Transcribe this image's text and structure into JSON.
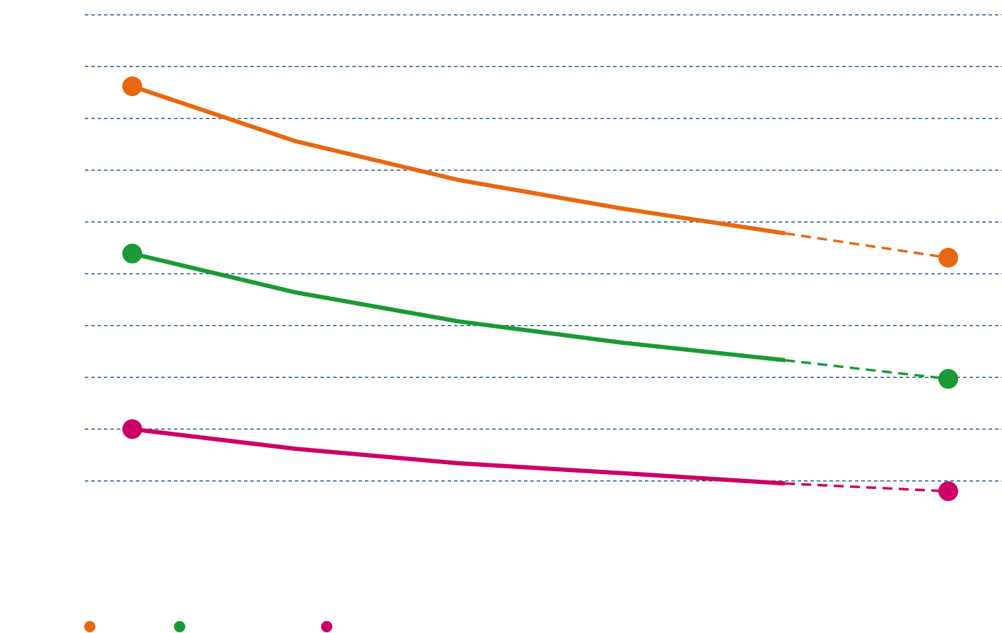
{
  "chart_data": {
    "type": "line",
    "categories": [
      null,
      null,
      null,
      null,
      null,
      null
    ],
    "ylim": [
      0,
      10
    ],
    "yticks": [
      1,
      2,
      3,
      4,
      5,
      6,
      7,
      8,
      9,
      10
    ],
    "grid": true,
    "dash_from_index": 4,
    "markers": "ends",
    "legend": "bottom-left",
    "series": [
      {
        "color": "#e8680f",
        "values": [
          8.62,
          7.56,
          6.81,
          6.26,
          5.78,
          5.31
        ]
      },
      {
        "color": "#1a9a35",
        "values": [
          5.39,
          4.64,
          4.08,
          3.67,
          3.33,
          2.97
        ]
      },
      {
        "color": "#cc0066",
        "values": [
          2.0,
          1.62,
          1.34,
          1.15,
          0.95,
          0.8
        ]
      }
    ]
  }
}
